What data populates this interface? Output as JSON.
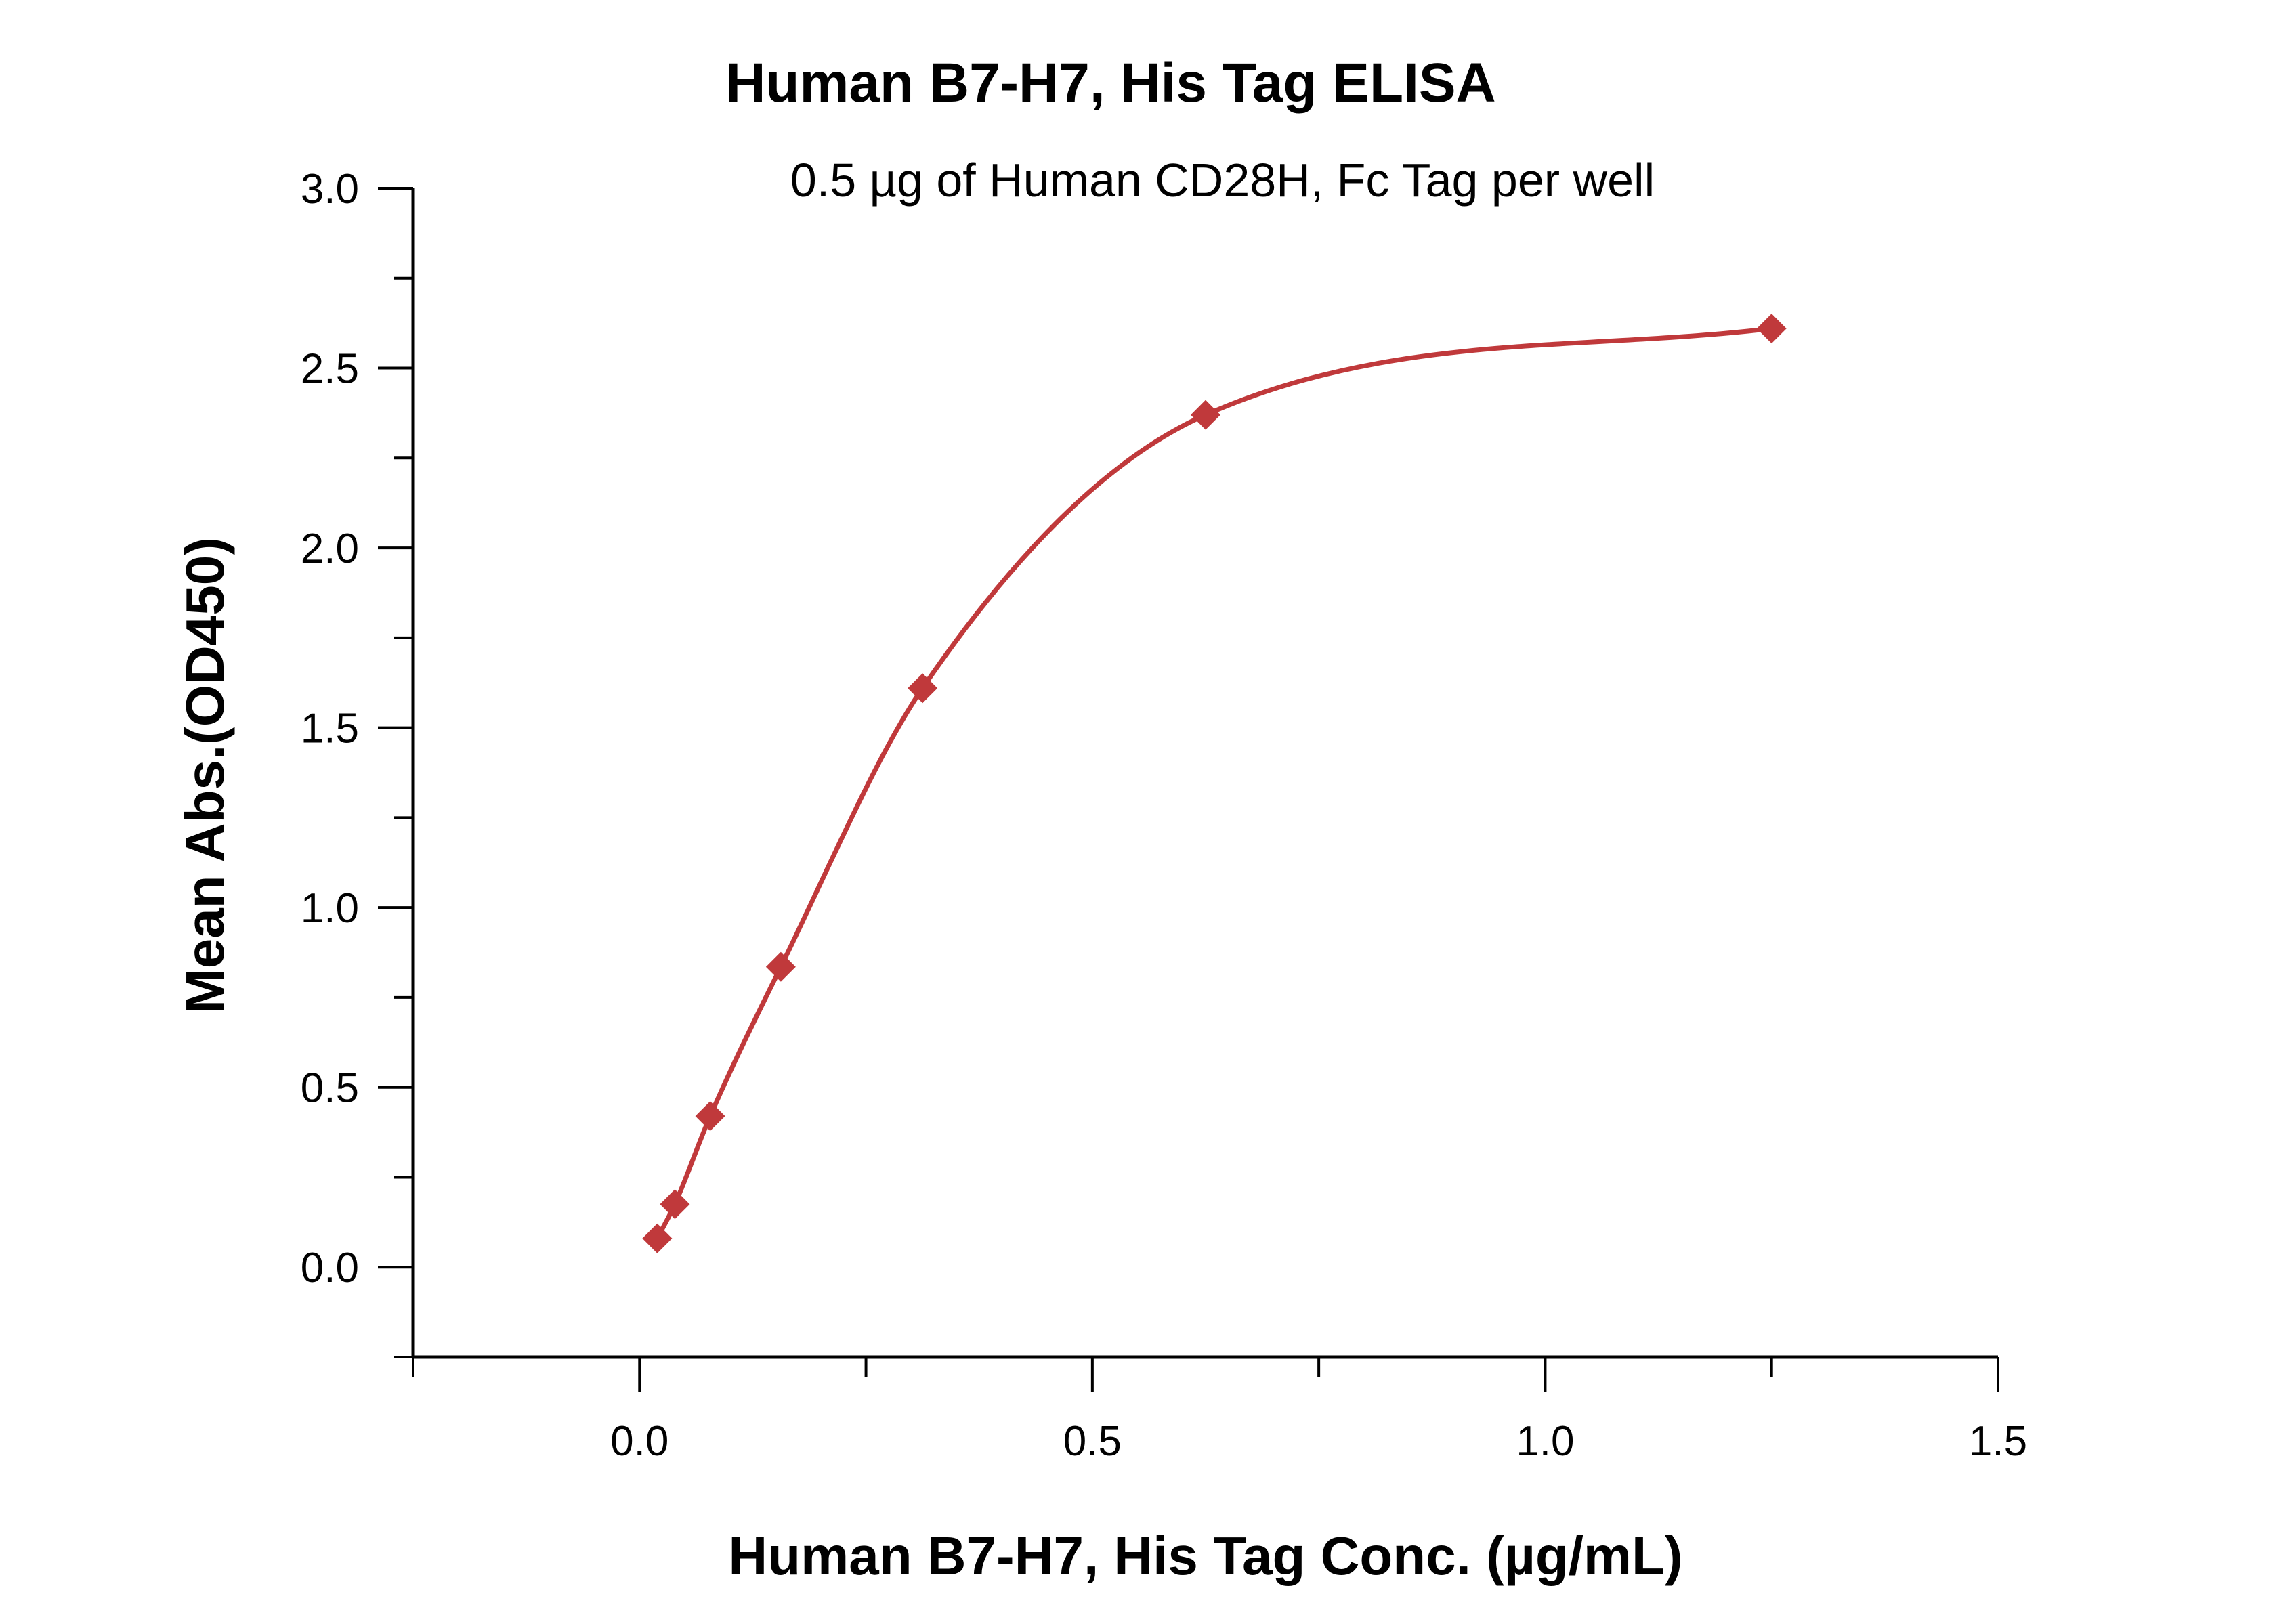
{
  "chart_data": {
    "type": "scatter",
    "title": "Human B7-H7, His Tag ELISA",
    "subtitle": "0.5 µg of Human CD28H, Fc Tag per well",
    "xlabel": "Human B7-H7, His Tag Conc. (µg/mL)",
    "ylabel": "Mean Abs.(OD450)",
    "xlim": [
      -0.25,
      1.5
    ],
    "ylim": [
      -0.25,
      3.0
    ],
    "xticks": [
      "0.0",
      "0.5",
      "1.0",
      "1.5"
    ],
    "yticks": [
      "0.0",
      "0.5",
      "1.0",
      "1.5",
      "2.0",
      "2.5",
      "3.0"
    ],
    "color": "#c0393b",
    "series": [
      {
        "points": [
          {
            "x": 0.0195,
            "y": 0.08
          },
          {
            "x": 0.039,
            "y": 0.175
          },
          {
            "x": 0.078,
            "y": 0.42
          },
          {
            "x": 0.156,
            "y": 0.835
          },
          {
            "x": 0.3125,
            "y": 1.61
          },
          {
            "x": 0.625,
            "y": 2.37
          },
          {
            "x": 1.25,
            "y": 2.61
          }
        ],
        "fit": "4PL"
      }
    ],
    "grid": false,
    "legend": "none"
  }
}
